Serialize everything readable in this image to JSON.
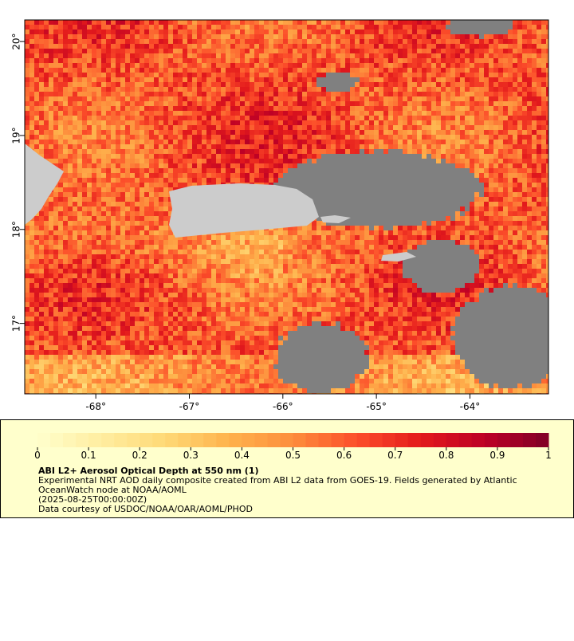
{
  "chart_data": {
    "type": "map",
    "xlim": [
      -68.76,
      -63.16
    ],
    "ylim": [
      16.25,
      20.23
    ],
    "xticks": [
      {
        "value": -68,
        "label": "-68°"
      },
      {
        "value": -67,
        "label": "-67°"
      },
      {
        "value": -66,
        "label": "-66°"
      },
      {
        "value": -65,
        "label": "-65°"
      },
      {
        "value": -64,
        "label": "-64°"
      }
    ],
    "yticks": [
      {
        "value": 17,
        "label": "17°"
      },
      {
        "value": 18,
        "label": "18°"
      },
      {
        "value": 19,
        "label": "19°"
      },
      {
        "value": 20,
        "label": "20°"
      }
    ],
    "colorbar": {
      "lim": [
        0,
        1
      ],
      "ticks": [
        0,
        0.1,
        0.2,
        0.3,
        0.4,
        0.5,
        0.6,
        0.7,
        0.8,
        0.9,
        1
      ],
      "colormap": [
        "#ffffcc",
        "#ffeda0",
        "#fed976",
        "#feb24c",
        "#fd8d3c",
        "#fc4e2a",
        "#e31a1c",
        "#bd0026",
        "#800026"
      ]
    },
    "title": "ABI L2+ Aerosol Optical Depth at 550 nm (1)",
    "notes": [
      "Experimental NRT AOD daily composite created from ABI L2 data from GOES-19. Fields generated by Atlantic",
      "OceanWatch node at NOAA/AOML",
      "(2025-08-25T00:00:00Z)",
      "Data courtesy of USDOC/NOAA/OAR/AOML/PHOD"
    ]
  }
}
